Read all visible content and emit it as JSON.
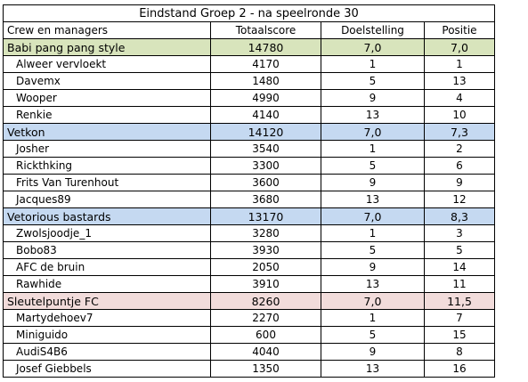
{
  "title": "Eindstand Groep 2  - na speelronde 30",
  "header": {
    "name": "Crew en managers",
    "score": "Totaalscore",
    "goal": "Doelstelling",
    "position": "Positie"
  },
  "teams": [
    {
      "name": "Babi pang pang style",
      "score": "14780",
      "goal": "7,0",
      "position": "7,0",
      "color": "#d8e4bc",
      "players": [
        {
          "name": "Alweer vervloekt",
          "score": "4170",
          "goal": "1",
          "position": "1"
        },
        {
          "name": "Davemx",
          "score": "1480",
          "goal": "5",
          "position": "13"
        },
        {
          "name": "Wooper",
          "score": "4990",
          "goal": "9",
          "position": "4"
        },
        {
          "name": "Renkie",
          "score": "4140",
          "goal": "13",
          "position": "10"
        }
      ]
    },
    {
      "name": "Vetkon",
      "score": "14120",
      "goal": "7,0",
      "position": "7,3",
      "color": "#c5d9f1",
      "players": [
        {
          "name": "Josher",
          "score": "3540",
          "goal": "1",
          "position": "2"
        },
        {
          "name": "Rickthking",
          "score": "3300",
          "goal": "5",
          "position": "6"
        },
        {
          "name": "Frits Van Turenhout",
          "score": "3600",
          "goal": "9",
          "position": "9"
        },
        {
          "name": "Jacques89",
          "score": "3680",
          "goal": "13",
          "position": "12"
        }
      ]
    },
    {
      "name": "Vetorious bastards",
      "score": "13170",
      "goal": "7,0",
      "position": "8,3",
      "color": "#c5d9f1",
      "players": [
        {
          "name": "Zwolsjoodje_1",
          "score": "3280",
          "goal": "1",
          "position": "3"
        },
        {
          "name": "Bobo83",
          "score": "3930",
          "goal": "5",
          "position": "5"
        },
        {
          "name": "AFC de bruin",
          "score": "2050",
          "goal": "9",
          "position": "14"
        },
        {
          "name": "Rawhide",
          "score": "3910",
          "goal": "13",
          "position": "11"
        }
      ]
    },
    {
      "name": "Sleutelpuntje FC",
      "score": "8260",
      "goal": "7,0",
      "position": "11,5",
      "color": "#f2dcdb",
      "players": [
        {
          "name": "Martydehoev7",
          "score": "2270",
          "goal": "1",
          "position": "7"
        },
        {
          "name": "Miniguido",
          "score": "600",
          "goal": "5",
          "position": "15"
        },
        {
          "name": "AudiS4B6",
          "score": "4040",
          "goal": "9",
          "position": "8"
        },
        {
          "name": "Josef Giebbels",
          "score": "1350",
          "goal": "13",
          "position": "16"
        }
      ]
    }
  ]
}
